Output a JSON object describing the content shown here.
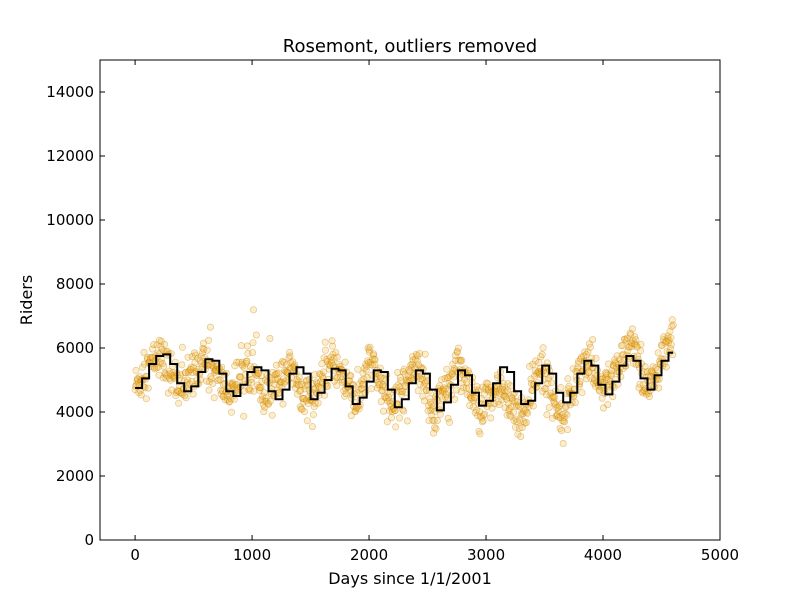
{
  "chart_data": {
    "type": "scatter",
    "title": "Rosemont, outliers removed",
    "xlabel": "Days since 1/1/2001",
    "ylabel": "Riders",
    "xlim": [
      -300,
      5000
    ],
    "ylim": [
      0,
      15000
    ],
    "xticks": [
      0,
      1000,
      2000,
      3000,
      4000,
      5000
    ],
    "xtick_labels": [
      "0",
      "1000",
      "2000",
      "3000",
      "4000",
      "5000"
    ],
    "yticks": [
      0,
      2000,
      4000,
      6000,
      8000,
      10000,
      12000,
      14000
    ],
    "ytick_labels": [
      "0",
      "2000",
      "4000",
      "6000",
      "8000",
      "10000",
      "12000",
      "14000"
    ],
    "grid": false,
    "colors": {
      "points_fill": "#f2b830",
      "points_edge": "#c07a00",
      "fit_line": "#000000"
    },
    "series": [
      {
        "type": "scatter",
        "x_range": [
          0,
          4600
        ],
        "note_points": "daily ridership scatter, approx. 4600 points",
        "approx_profile": {
          "x": [
            0,
            200,
            400,
            600,
            800,
            1000,
            1100,
            1300,
            1500,
            1700,
            1900,
            2000,
            2200,
            2400,
            2550,
            2750,
            2950,
            3100,
            3300,
            3450,
            3650,
            3850,
            4000,
            4250,
            4400,
            4600
          ],
          "y": [
            4800,
            5800,
            4700,
            5600,
            4600,
            5500,
            4300,
            5400,
            4300,
            5600,
            4200,
            5600,
            4100,
            5700,
            3900,
            5500,
            3900,
            4900,
            3700,
            5400,
            3900,
            5700,
            4600,
            6100,
            4700,
            6400
          ]
        }
      },
      {
        "type": "step",
        "x": [
          0,
          60,
          120,
          180,
          240,
          300,
          360,
          420,
          480,
          540,
          600,
          660,
          720,
          780,
          840,
          900,
          960,
          1020,
          1080,
          1140,
          1200,
          1260,
          1320,
          1380,
          1440,
          1500,
          1560,
          1620,
          1680,
          1740,
          1800,
          1860,
          1920,
          1980,
          2040,
          2100,
          2160,
          2220,
          2280,
          2340,
          2400,
          2460,
          2520,
          2580,
          2640,
          2700,
          2760,
          2820,
          2880,
          2940,
          3000,
          3060,
          3120,
          3180,
          3240,
          3300,
          3360,
          3420,
          3480,
          3540,
          3600,
          3660,
          3720,
          3780,
          3840,
          3900,
          3960,
          4020,
          4080,
          4140,
          4200,
          4260,
          4320,
          4380,
          4440,
          4500,
          4560,
          4600
        ],
        "y": [
          4750,
          5050,
          5500,
          5750,
          5800,
          5500,
          4900,
          4650,
          4800,
          5250,
          5650,
          5600,
          5200,
          4650,
          4500,
          4850,
          5250,
          5400,
          5300,
          4650,
          4400,
          4700,
          5200,
          5400,
          5200,
          4400,
          4600,
          5000,
          5350,
          5300,
          4800,
          4250,
          4450,
          4950,
          5300,
          5250,
          4700,
          4150,
          4400,
          4900,
          5300,
          5200,
          4700,
          4050,
          4300,
          4850,
          5300,
          5150,
          4600,
          4200,
          4350,
          4900,
          5400,
          5250,
          4650,
          4250,
          4350,
          4900,
          5450,
          5200,
          4600,
          4300,
          4600,
          5200,
          5600,
          5450,
          4850,
          4550,
          4950,
          5450,
          5750,
          5600,
          5050,
          4700,
          5150,
          5600,
          5850,
          5850
        ]
      }
    ]
  }
}
